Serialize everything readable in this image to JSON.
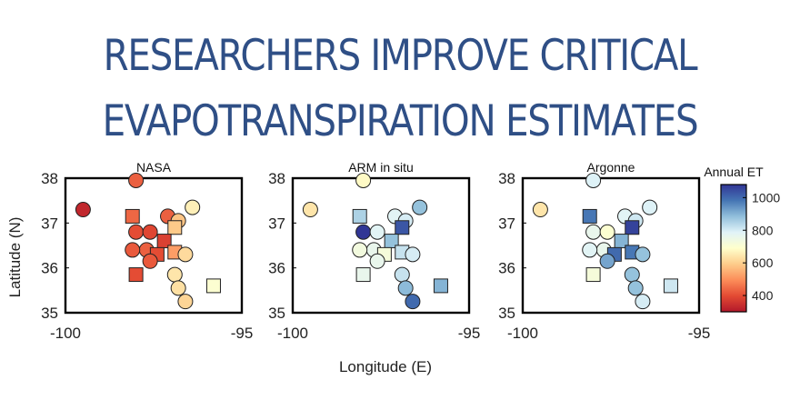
{
  "headline": {
    "line1": "RESEARCHERS IMPROVE CRITICAL",
    "line2": "EVAPOTRANSPIRATION ESTIMATES"
  },
  "chart_data": {
    "type": "scatter",
    "xlabel": "Longitude (E)",
    "ylabel": "Latitude (N)",
    "xlim": [
      -100,
      -95
    ],
    "ylim": [
      35,
      38
    ],
    "x_ticks": [
      "-100",
      "-95"
    ],
    "y_ticks": [
      "35",
      "36",
      "37",
      "38"
    ],
    "grid": false,
    "colorbar": {
      "title": "Annual ET",
      "range": [
        300,
        1080
      ],
      "ticks": [
        "400",
        "600",
        "800",
        "1000"
      ],
      "colors": [
        "#b2182b",
        "#e34a33",
        "#fc8d59",
        "#fdcc8a",
        "#ffffcc",
        "#e0f3f8",
        "#91bfdb",
        "#4575b4",
        "#313695"
      ]
    },
    "panels": [
      {
        "title": "NASA",
        "points": [
          {
            "lon": -99.5,
            "lat": 37.3,
            "shape": "circle",
            "et": 330
          },
          {
            "lon": -98.0,
            "lat": 37.95,
            "shape": "circle",
            "et": 430
          },
          {
            "lon": -98.1,
            "lat": 37.15,
            "shape": "square",
            "et": 440
          },
          {
            "lon": -97.1,
            "lat": 37.15,
            "shape": "circle",
            "et": 430
          },
          {
            "lon": -96.4,
            "lat": 37.35,
            "shape": "circle",
            "et": 660
          },
          {
            "lon": -96.8,
            "lat": 37.05,
            "shape": "circle",
            "et": 580
          },
          {
            "lon": -96.9,
            "lat": 36.9,
            "shape": "square",
            "et": 590
          },
          {
            "lon": -98.0,
            "lat": 36.8,
            "shape": "circle",
            "et": 400
          },
          {
            "lon": -97.6,
            "lat": 36.8,
            "shape": "circle",
            "et": 390
          },
          {
            "lon": -97.2,
            "lat": 36.6,
            "shape": "square",
            "et": 380
          },
          {
            "lon": -97.7,
            "lat": 36.4,
            "shape": "circle",
            "et": 430
          },
          {
            "lon": -98.1,
            "lat": 36.4,
            "shape": "circle",
            "et": 420
          },
          {
            "lon": -97.4,
            "lat": 36.3,
            "shape": "square",
            "et": 400
          },
          {
            "lon": -96.9,
            "lat": 36.35,
            "shape": "square",
            "et": 520
          },
          {
            "lon": -96.6,
            "lat": 36.3,
            "shape": "circle",
            "et": 620
          },
          {
            "lon": -97.6,
            "lat": 36.15,
            "shape": "circle",
            "et": 420
          },
          {
            "lon": -96.9,
            "lat": 35.85,
            "shape": "circle",
            "et": 640
          },
          {
            "lon": -98.0,
            "lat": 35.85,
            "shape": "square",
            "et": 400
          },
          {
            "lon": -96.8,
            "lat": 35.55,
            "shape": "circle",
            "et": 630
          },
          {
            "lon": -96.6,
            "lat": 35.25,
            "shape": "circle",
            "et": 610
          },
          {
            "lon": -95.8,
            "lat": 35.6,
            "shape": "square",
            "et": 700
          }
        ]
      },
      {
        "title": "ARM in situ",
        "points": [
          {
            "lon": -99.5,
            "lat": 37.3,
            "shape": "circle",
            "et": 640
          },
          {
            "lon": -98.0,
            "lat": 37.95,
            "shape": "circle",
            "et": 680
          },
          {
            "lon": -98.1,
            "lat": 37.15,
            "shape": "square",
            "et": 850
          },
          {
            "lon": -97.1,
            "lat": 37.15,
            "shape": "circle",
            "et": 780
          },
          {
            "lon": -96.4,
            "lat": 37.35,
            "shape": "circle",
            "et": 880
          },
          {
            "lon": -96.8,
            "lat": 37.05,
            "shape": "circle",
            "et": 800
          },
          {
            "lon": -96.9,
            "lat": 36.9,
            "shape": "square",
            "et": 1030
          },
          {
            "lon": -98.0,
            "lat": 36.8,
            "shape": "circle",
            "et": 1080
          },
          {
            "lon": -97.6,
            "lat": 36.8,
            "shape": "circle",
            "et": 780
          },
          {
            "lon": -97.2,
            "lat": 36.6,
            "shape": "square",
            "et": 880
          },
          {
            "lon": -97.7,
            "lat": 36.4,
            "shape": "circle",
            "et": 760
          },
          {
            "lon": -98.1,
            "lat": 36.4,
            "shape": "circle",
            "et": 730
          },
          {
            "lon": -97.4,
            "lat": 36.3,
            "shape": "square",
            "et": 720
          },
          {
            "lon": -96.9,
            "lat": 36.35,
            "shape": "square",
            "et": 820
          },
          {
            "lon": -96.6,
            "lat": 36.3,
            "shape": "circle",
            "et": 800
          },
          {
            "lon": -97.6,
            "lat": 36.15,
            "shape": "circle",
            "et": 760
          },
          {
            "lon": -96.9,
            "lat": 35.85,
            "shape": "circle",
            "et": 820
          },
          {
            "lon": -98.0,
            "lat": 35.85,
            "shape": "square",
            "et": 760
          },
          {
            "lon": -96.8,
            "lat": 35.55,
            "shape": "circle",
            "et": 890
          },
          {
            "lon": -96.6,
            "lat": 35.25,
            "shape": "circle",
            "et": 1000
          },
          {
            "lon": -95.8,
            "lat": 35.6,
            "shape": "square",
            "et": 900
          }
        ]
      },
      {
        "title": "Argonne",
        "points": [
          {
            "lon": -99.5,
            "lat": 37.3,
            "shape": "circle",
            "et": 640
          },
          {
            "lon": -98.0,
            "lat": 37.95,
            "shape": "circle",
            "et": 790
          },
          {
            "lon": -98.1,
            "lat": 37.15,
            "shape": "square",
            "et": 980
          },
          {
            "lon": -97.1,
            "lat": 37.15,
            "shape": "circle",
            "et": 780
          },
          {
            "lon": -96.4,
            "lat": 37.35,
            "shape": "circle",
            "et": 790
          },
          {
            "lon": -96.8,
            "lat": 37.05,
            "shape": "circle",
            "et": 810
          },
          {
            "lon": -96.9,
            "lat": 36.9,
            "shape": "square",
            "et": 1060
          },
          {
            "lon": -98.0,
            "lat": 36.8,
            "shape": "circle",
            "et": 760
          },
          {
            "lon": -97.6,
            "lat": 36.8,
            "shape": "circle",
            "et": 700
          },
          {
            "lon": -97.2,
            "lat": 36.6,
            "shape": "square",
            "et": 900
          },
          {
            "lon": -97.7,
            "lat": 36.4,
            "shape": "circle",
            "et": 760
          },
          {
            "lon": -98.1,
            "lat": 36.4,
            "shape": "circle",
            "et": 780
          },
          {
            "lon": -97.4,
            "lat": 36.3,
            "shape": "square",
            "et": 1000
          },
          {
            "lon": -96.9,
            "lat": 36.35,
            "shape": "square",
            "et": 980
          },
          {
            "lon": -96.6,
            "lat": 36.3,
            "shape": "circle",
            "et": 880
          },
          {
            "lon": -97.6,
            "lat": 36.15,
            "shape": "circle",
            "et": 920
          },
          {
            "lon": -96.9,
            "lat": 35.85,
            "shape": "circle",
            "et": 880
          },
          {
            "lon": -98.0,
            "lat": 35.85,
            "shape": "square",
            "et": 720
          },
          {
            "lon": -96.8,
            "lat": 35.55,
            "shape": "circle",
            "et": 880
          },
          {
            "lon": -96.6,
            "lat": 35.25,
            "shape": "circle",
            "et": 800
          },
          {
            "lon": -95.8,
            "lat": 35.6,
            "shape": "square",
            "et": 810
          }
        ]
      }
    ]
  }
}
